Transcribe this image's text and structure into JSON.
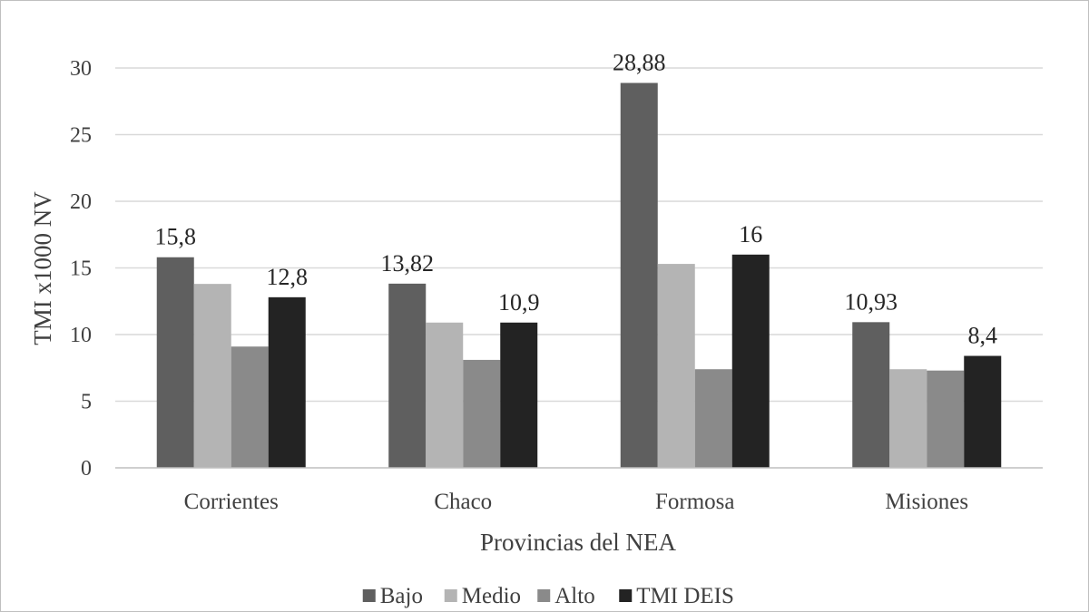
{
  "chart_data": {
    "type": "bar",
    "title": "",
    "xlabel": "Provincias del NEA",
    "ylabel": "TMI x1000 NV",
    "ylim": [
      0,
      30
    ],
    "yticks": [
      0,
      5,
      10,
      15,
      20,
      25,
      30
    ],
    "grid": true,
    "legend_position": "bottom",
    "categories": [
      "Corrientes",
      "Chaco",
      "Formosa",
      "Misiones"
    ],
    "series": [
      {
        "name": "Bajo",
        "color": "#5f5f5f",
        "values": [
          15.8,
          13.82,
          28.88,
          10.93
        ]
      },
      {
        "name": "Medio",
        "color": "#b4b4b4",
        "values": [
          13.8,
          10.9,
          15.3,
          7.4
        ]
      },
      {
        "name": "Alto",
        "color": "#8a8a8a",
        "values": [
          9.1,
          8.1,
          7.4,
          7.3
        ]
      },
      {
        "name": "TMI DEIS",
        "color": "#232323",
        "values": [
          12.8,
          10.9,
          16,
          8.4
        ]
      }
    ],
    "data_labels": [
      {
        "category": "Corrientes",
        "series": "Bajo",
        "text": "15,8"
      },
      {
        "category": "Corrientes",
        "series": "TMI DEIS",
        "text": "12,8"
      },
      {
        "category": "Chaco",
        "series": "Bajo",
        "text": "13,82"
      },
      {
        "category": "Chaco",
        "series": "TMI DEIS",
        "text": "10,9"
      },
      {
        "category": "Formosa",
        "series": "Bajo",
        "text": "28,88"
      },
      {
        "category": "Formosa",
        "series": "TMI DEIS",
        "text": "16"
      },
      {
        "category": "Misiones",
        "series": "Bajo",
        "text": "10,93"
      },
      {
        "category": "Misiones",
        "series": "TMI DEIS",
        "text": "8,4"
      }
    ]
  }
}
